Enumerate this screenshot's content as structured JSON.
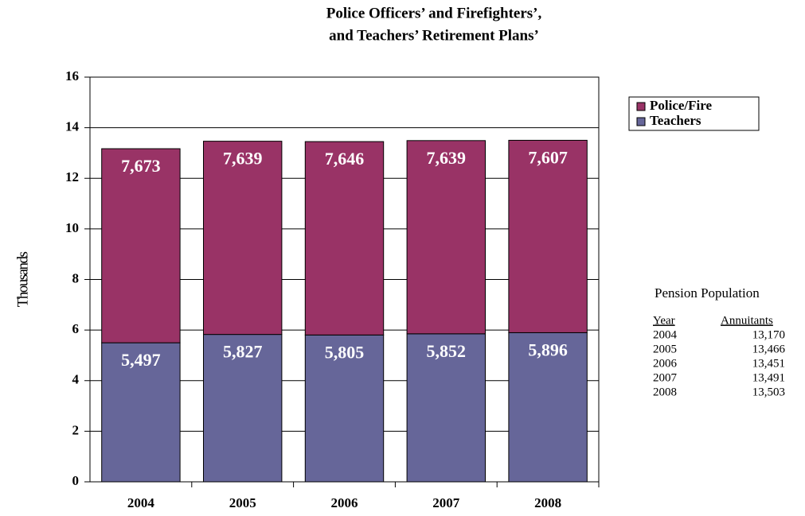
{
  "chart_data": {
    "type": "stacked_bar",
    "title": [
      "Police Officers’ and Firefighters’,",
      "and Teachers’ Retirement Plans’"
    ],
    "ylabel": "Thousands",
    "categories": [
      "2004",
      "2005",
      "2006",
      "2007",
      "2008"
    ],
    "series": [
      {
        "name": "Teachers",
        "color": "#666699",
        "values": [
          5.497,
          5.827,
          5.805,
          5.852,
          5.896
        ],
        "value_labels": [
          "5,497",
          "5,827",
          "5,805",
          "5,852",
          "5,896"
        ]
      },
      {
        "name": "Police/Fire",
        "color": "#993366",
        "values": [
          7.673,
          7.639,
          7.646,
          7.639,
          7.607
        ],
        "value_labels": [
          "7,673",
          "7,639",
          "7,646",
          "7,639",
          "7,607"
        ]
      }
    ],
    "ylim": [
      0,
      16
    ],
    "yticks": [
      0,
      2,
      4,
      6,
      8,
      10,
      12,
      14,
      16
    ],
    "grid": true,
    "legend": "right"
  },
  "table": {
    "title": "Pension Population",
    "columns": [
      "Year",
      "Annuitants"
    ],
    "rows": [
      [
        "2004",
        "13,170"
      ],
      [
        "2005",
        "13,466"
      ],
      [
        "2006",
        "13,451"
      ],
      [
        "2007",
        "13,491"
      ],
      [
        "2008",
        "13,503"
      ]
    ]
  }
}
